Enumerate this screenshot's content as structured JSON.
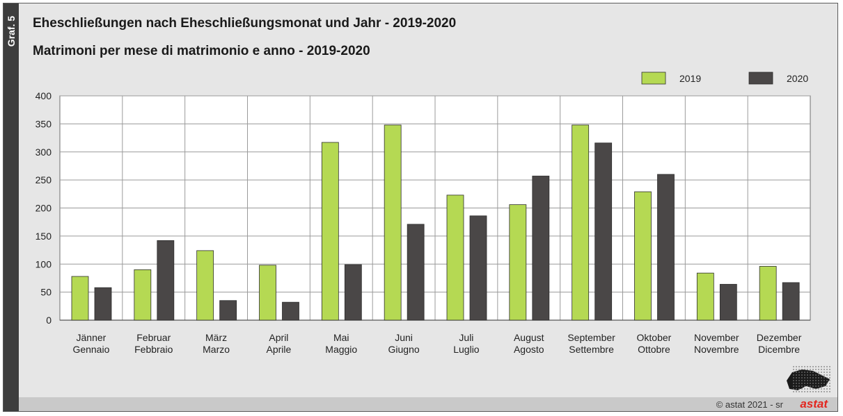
{
  "side_label": "Graf. 5",
  "title": "Eheschließungen nach Eheschließungsmonat und Jahr - 2019-2020",
  "subtitle": "Matrimoni per mese di matrimonio e anno - 2019-2020",
  "footer": {
    "credit": "© astat 2021 - sr",
    "logo": "astat"
  },
  "colors": {
    "series_2019": "#b5d953",
    "series_2020": "#4a4747"
  },
  "chart_data": {
    "type": "bar",
    "title": "Eheschließungen nach Eheschließungsmonat und Jahr - 2019-2020",
    "subtitle": "Matrimoni per mese di matrimonio e anno - 2019-2020",
    "categories": [
      [
        "Jänner",
        "Gennaio"
      ],
      [
        "Februar",
        "Febbraio"
      ],
      [
        "März",
        "Marzo"
      ],
      [
        "April",
        "Aprile"
      ],
      [
        "Mai",
        "Maggio"
      ],
      [
        "Juni",
        "Giugno"
      ],
      [
        "Juli",
        "Luglio"
      ],
      [
        "August",
        "Agosto"
      ],
      [
        "September",
        "Settembre"
      ],
      [
        "Oktober",
        "Ottobre"
      ],
      [
        "November",
        "Novembre"
      ],
      [
        "Dezember",
        "Dicembre"
      ]
    ],
    "series": [
      {
        "name": "2019",
        "values": [
          78,
          90,
          124,
          98,
          317,
          348,
          223,
          206,
          348,
          229,
          84,
          96
        ]
      },
      {
        "name": "2020",
        "values": [
          58,
          142,
          35,
          32,
          99,
          171,
          186,
          257,
          316,
          260,
          64,
          67
        ]
      }
    ],
    "ylim": [
      0,
      400
    ],
    "yticks": [
      0,
      50,
      100,
      150,
      200,
      250,
      300,
      350,
      400
    ],
    "grid": true,
    "legend": "top-right"
  }
}
